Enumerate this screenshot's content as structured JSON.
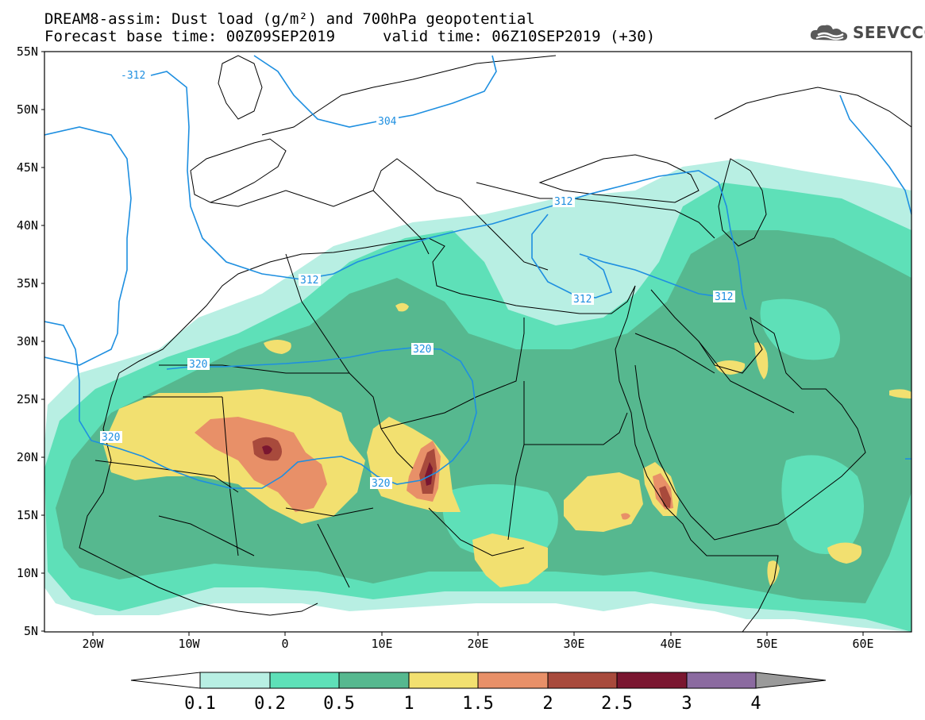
{
  "header": {
    "title_line1": "DREAM8-assim: Dust load (g/m²) and 700hPa geopotential",
    "title_line2_left": "Forecast base time: 00Z09SEP2019",
    "title_line2_right": "valid time: 06Z10SEP2019 (+30)",
    "logo_text": "SEEVCCC"
  },
  "map": {
    "lat_labels": [
      "55N",
      "50N",
      "45N",
      "40N",
      "35N",
      "30N",
      "25N",
      "20N",
      "15N",
      "10N",
      "5N"
    ],
    "lon_labels": [
      "20W",
      "10W",
      "0",
      "10E",
      "20E",
      "30E",
      "40E",
      "50E",
      "60E"
    ],
    "isolines": [
      {
        "label": "-312"
      },
      {
        "label": "304"
      },
      {
        "label": "312"
      },
      {
        "label": "312"
      },
      {
        "label": "312"
      },
      {
        "label": "312"
      },
      {
        "label": "320"
      },
      {
        "label": "320"
      },
      {
        "label": "320"
      },
      {
        "label": "320"
      }
    ],
    "colors": {
      "isoline": "#1e8fe0",
      "land_border": "#000000"
    }
  },
  "colorbar": {
    "labels": [
      "0.1",
      "0.2",
      "0.5",
      "1",
      "1.5",
      "2",
      "2.5",
      "3",
      "4"
    ],
    "colors": [
      "#ffffff",
      "#b8efe3",
      "#5ee0b8",
      "#56b88f",
      "#f2e070",
      "#e89068",
      "#a84a3c",
      "#7a1630",
      "#8b6aa0",
      "#9a9a9a"
    ]
  }
}
